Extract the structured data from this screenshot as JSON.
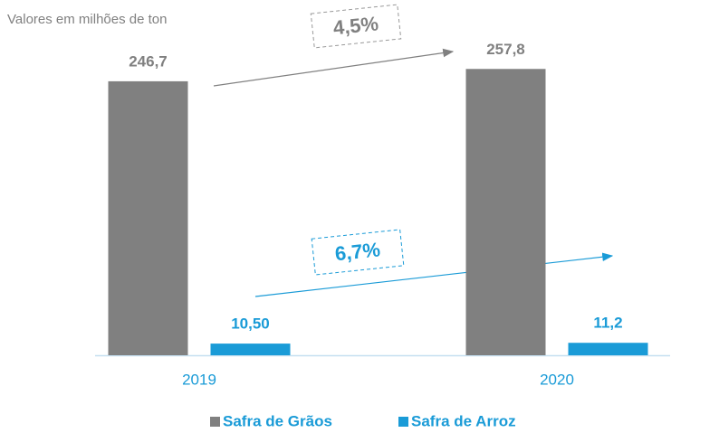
{
  "chart_data": {
    "type": "bar",
    "subtitle": "Valores em milhões de ton",
    "categories": [
      "2019",
      "2020"
    ],
    "series": [
      {
        "name": "Safra de Grãos",
        "color": "#808080",
        "values": [
          246.7,
          257.8
        ],
        "value_labels": [
          "246,7",
          "257,8"
        ]
      },
      {
        "name": "Safra de Arroz",
        "color": "#1a9bd7",
        "values": [
          10.5,
          11.2
        ],
        "value_labels": [
          "10,50",
          "11,2"
        ]
      }
    ],
    "annotations": [
      "4,5%",
      "6,7%"
    ],
    "ylim": [
      0,
      280
    ]
  }
}
